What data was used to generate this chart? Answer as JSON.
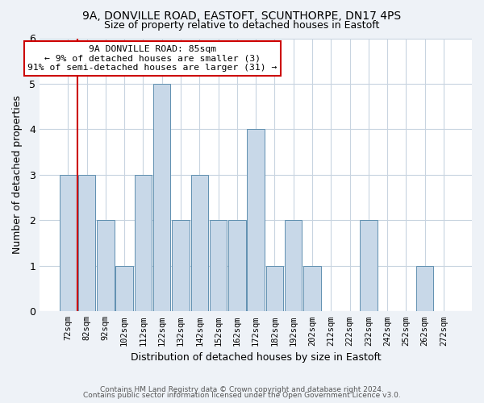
{
  "title": "9A, DONVILLE ROAD, EASTOFT, SCUNTHORPE, DN17 4PS",
  "subtitle": "Size of property relative to detached houses in Eastoft",
  "xlabel": "Distribution of detached houses by size in Eastoft",
  "ylabel": "Number of detached properties",
  "bin_labels": [
    "72sqm",
    "82sqm",
    "92sqm",
    "102sqm",
    "112sqm",
    "122sqm",
    "132sqm",
    "142sqm",
    "152sqm",
    "162sqm",
    "172sqm",
    "182sqm",
    "192sqm",
    "202sqm",
    "212sqm",
    "222sqm",
    "232sqm",
    "242sqm",
    "252sqm",
    "262sqm",
    "272sqm"
  ],
  "bar_values": [
    3,
    3,
    2,
    1,
    3,
    5,
    2,
    3,
    2,
    2,
    4,
    1,
    2,
    1,
    0,
    0,
    2,
    0,
    0,
    1,
    0
  ],
  "bar_color": "#c8d8e8",
  "bar_edgecolor": "#6090b0",
  "vline_x_index": 1,
  "vline_color": "#cc0000",
  "ylim": [
    0,
    6
  ],
  "yticks": [
    0,
    1,
    2,
    3,
    4,
    5,
    6
  ],
  "annotation_title": "9A DONVILLE ROAD: 85sqm",
  "annotation_line1": "← 9% of detached houses are smaller (3)",
  "annotation_line2": "91% of semi-detached houses are larger (31) →",
  "annotation_box_facecolor": "#ffffff",
  "annotation_box_edgecolor": "#cc0000",
  "footer_line1": "Contains HM Land Registry data © Crown copyright and database right 2024.",
  "footer_line2": "Contains public sector information licensed under the Open Government Licence v3.0.",
  "background_color": "#eef2f7",
  "plot_bg_color": "#ffffff",
  "title_fontsize": 10,
  "subtitle_fontsize": 9,
  "bar_width": 0.92
}
